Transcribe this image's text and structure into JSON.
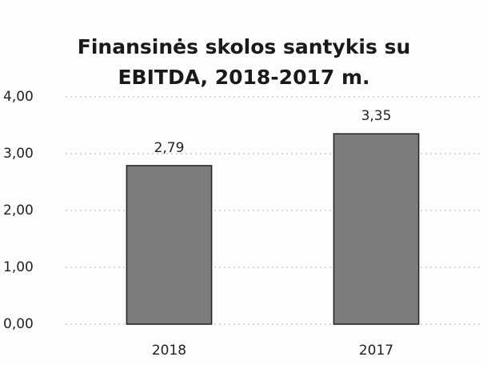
{
  "chart_data": {
    "type": "bar",
    "title": "Finansinės skolos santykis su EBITDA, 2018-2017 m.",
    "categories": [
      "2018",
      "2017"
    ],
    "values": [
      2.79,
      3.35
    ],
    "value_labels": [
      "2,79",
      "3,35"
    ],
    "color": "#7d7d7d",
    "ylim": [
      0,
      4
    ],
    "yticks": [
      {
        "value": 0,
        "label": "0,00"
      },
      {
        "value": 1,
        "label": "1,00"
      },
      {
        "value": 2,
        "label": "2,00"
      },
      {
        "value": 3,
        "label": "3,00"
      },
      {
        "value": 4,
        "label": "4,00"
      }
    ],
    "grid": true
  }
}
